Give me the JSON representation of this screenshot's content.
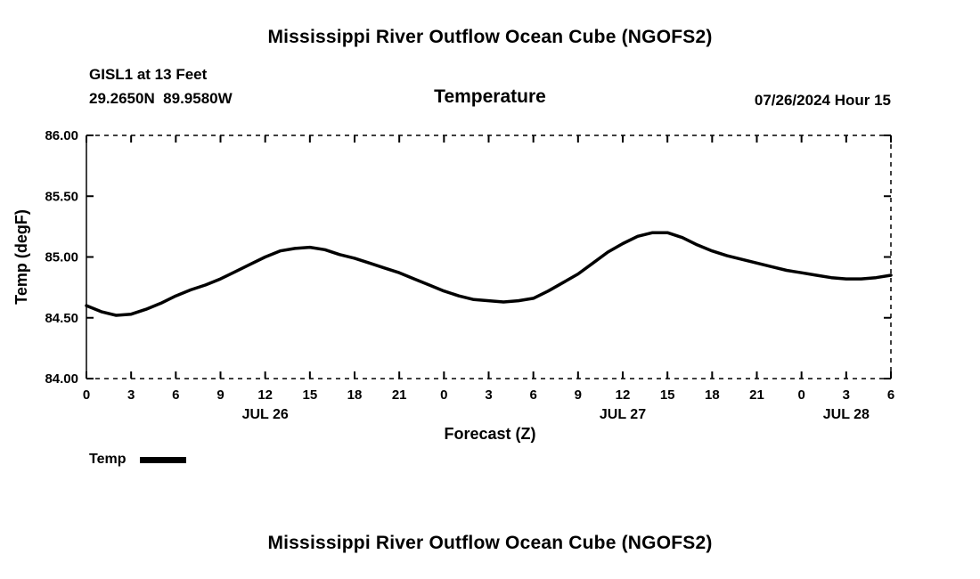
{
  "header": {
    "title": "Mississippi River Outflow Ocean Cube (NGOFS2)",
    "station": "GISL1 at 13 Feet",
    "coordinates": "29.2650N  89.9580W",
    "subtitle": "Temperature",
    "datetime": "07/26/2024 Hour 15"
  },
  "chart_data": {
    "type": "line",
    "title": "Temperature",
    "xlabel": "Forecast (Z)",
    "ylabel": "Temp (degF)",
    "xlim": [
      0,
      54
    ],
    "ylim": [
      84.0,
      86.0
    ],
    "grid": false,
    "line_color": "#000000",
    "x_major_ticks": [
      0,
      3,
      6,
      9,
      12,
      15,
      18,
      21,
      24,
      27,
      30,
      33,
      36,
      39,
      42,
      45,
      48,
      51,
      54
    ],
    "x_tick_labels": [
      "0",
      "3",
      "6",
      "9",
      "12",
      "15",
      "18",
      "21",
      "0",
      "3",
      "6",
      "9",
      "12",
      "15",
      "18",
      "21",
      "0",
      "3",
      "6"
    ],
    "y_ticks": [
      84.0,
      84.5,
      85.0,
      85.5,
      86.0
    ],
    "y_tick_labels": [
      "84.00",
      "84.50",
      "85.00",
      "85.50",
      "86.00"
    ],
    "date_labels": [
      {
        "label": "JUL 26",
        "hour": 12
      },
      {
        "label": "JUL 27",
        "hour": 36
      },
      {
        "label": "JUL 28",
        "hour": 51
      }
    ],
    "series": [
      {
        "name": "Temp",
        "x": [
          0,
          1,
          2,
          3,
          4,
          5,
          6,
          7,
          8,
          9,
          10,
          11,
          12,
          13,
          14,
          15,
          16,
          17,
          18,
          19,
          20,
          21,
          22,
          23,
          24,
          25,
          26,
          27,
          28,
          29,
          30,
          31,
          32,
          33,
          34,
          35,
          36,
          37,
          38,
          39,
          40,
          41,
          42,
          43,
          44,
          45,
          46,
          47,
          48,
          49,
          50,
          51,
          52,
          53,
          54
        ],
        "values": [
          84.6,
          84.55,
          84.52,
          84.53,
          84.57,
          84.62,
          84.68,
          84.73,
          84.77,
          84.82,
          84.88,
          84.94,
          85.0,
          85.05,
          85.07,
          85.08,
          85.06,
          85.02,
          84.99,
          84.95,
          84.91,
          84.87,
          84.82,
          84.77,
          84.72,
          84.68,
          84.65,
          84.64,
          84.63,
          84.64,
          84.66,
          84.72,
          84.79,
          84.86,
          84.95,
          85.04,
          85.11,
          85.17,
          85.2,
          85.2,
          85.16,
          85.1,
          85.05,
          85.01,
          84.98,
          84.95,
          84.92,
          84.89,
          84.87,
          84.85,
          84.83,
          84.82,
          84.82,
          84.83,
          84.85
        ]
      }
    ]
  },
  "legend": {
    "label": "Temp"
  },
  "footer": {
    "title": "Mississippi River Outflow Ocean Cube (NGOFS2)"
  }
}
